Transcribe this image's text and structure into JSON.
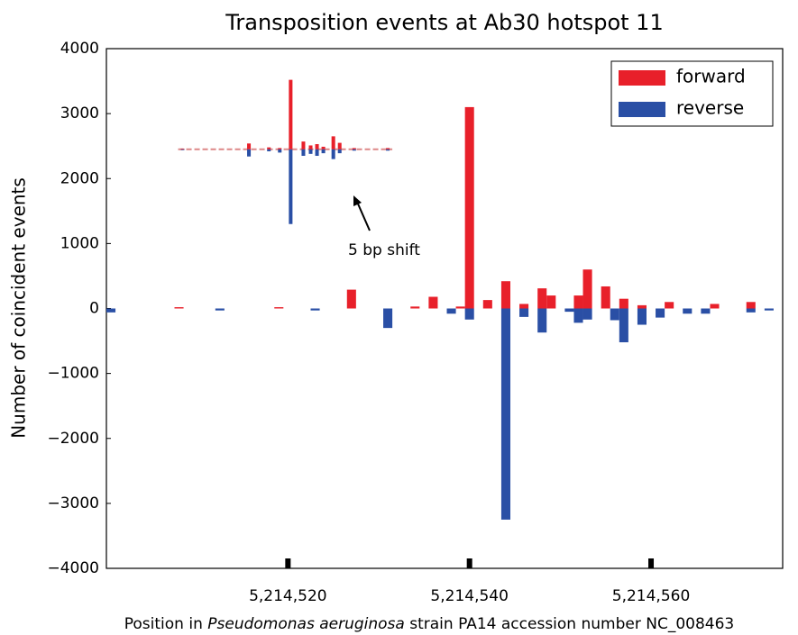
{
  "chart_data": {
    "type": "bar",
    "title": "Transposition events at Ab30 hotspot 11",
    "ylabel": "Number of coincident events",
    "xlabel_parts": [
      {
        "text": "Position in ",
        "italic": false
      },
      {
        "text": "Pseudomonas aeruginosa",
        "italic": true
      },
      {
        "text": " strain PA14 accession number NC_008463",
        "italic": false
      }
    ],
    "annotation": "5 bp shift",
    "legend": "upper right",
    "xlim": [
      5214500,
      5214574.5
    ],
    "ylim": [
      -4000,
      4000
    ],
    "xticks": [
      {
        "value": 5214520,
        "label": "5,214,520"
      },
      {
        "value": 5214540,
        "label": "5,214,540"
      },
      {
        "value": 5214560,
        "label": "5,214,560"
      }
    ],
    "yticks": [
      {
        "value": -4000,
        "label": "−4000"
      },
      {
        "value": -3000,
        "label": "−3000"
      },
      {
        "value": -2000,
        "label": "−2000"
      },
      {
        "value": -1000,
        "label": "−1000"
      },
      0,
      1000,
      2000,
      3000,
      4000
    ],
    "series": [
      {
        "name": "forward",
        "color": "#e8202a",
        "x": [
          5214508,
          5214519,
          5214527,
          5214534,
          5214536,
          5214539,
          5214540,
          5214542,
          5214544,
          5214546,
          5214548,
          5214549,
          5214552,
          5214553,
          5214555,
          5214557,
          5214559,
          5214562,
          5214567,
          5214571
        ],
        "values": [
          20,
          20,
          290,
          30,
          180,
          30,
          3100,
          130,
          420,
          70,
          310,
          200,
          200,
          600,
          340,
          150,
          50,
          100,
          70,
          100
        ]
      },
      {
        "name": "reverse",
        "color": "#2a4fa5",
        "x": [
          5214500.5,
          5214512.5,
          5214523,
          5214531,
          5214538,
          5214540,
          5214544,
          5214546,
          5214548,
          5214551,
          5214552,
          5214553,
          5214556,
          5214557,
          5214559,
          5214561,
          5214564,
          5214566,
          5214571,
          5214573
        ],
        "values": [
          -60,
          -30,
          -30,
          -300,
          -80,
          -170,
          -3250,
          -130,
          -370,
          -50,
          -220,
          -170,
          -180,
          -520,
          -250,
          -140,
          -80,
          -80,
          -60,
          -30
        ]
      }
    ],
    "inset": {
      "baseline": 2450,
      "x": [
        5214508.4,
        5214515.7,
        5214517.9,
        5214519.1,
        5214520.3,
        5214521.7,
        5214522.5,
        5214523.2,
        5214523.9,
        5214525.0,
        5214525.7,
        5214527.3,
        5214531.0
      ],
      "forward": [
        10,
        90,
        30,
        20,
        1070,
        120,
        60,
        80,
        40,
        200,
        100,
        20,
        20
      ],
      "reverse": [
        -10,
        -110,
        -30,
        -50,
        -1150,
        -100,
        -70,
        -100,
        -60,
        -150,
        -60,
        -20,
        -20
      ]
    }
  }
}
